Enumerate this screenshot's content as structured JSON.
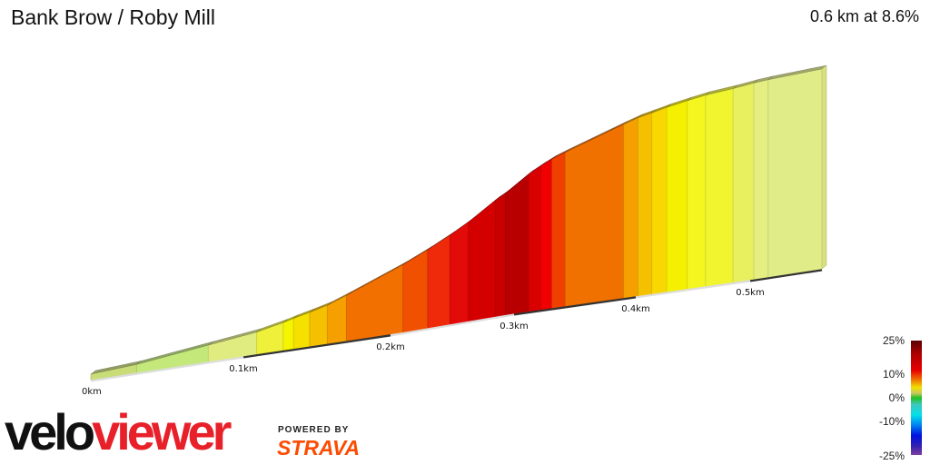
{
  "header": {
    "title": "Bank Brow / Roby Mill",
    "stat": "0.6 km at 8.6%"
  },
  "chart_data": {
    "type": "area",
    "title": "Bank Brow / Roby Mill",
    "xlabel": "",
    "ylabel": "",
    "x_unit": "km",
    "x_ticks": [
      "0km",
      "0.1km",
      "0.2km",
      "0.3km",
      "0.4km",
      "0.5km"
    ],
    "profile_points": [
      [
        0,
        0
      ],
      [
        0.03,
        0.7
      ],
      [
        0.077,
        2.9
      ],
      [
        0.109,
        4.4
      ],
      [
        0.127,
        5.9
      ],
      [
        0.134,
        6.6
      ],
      [
        0.145,
        7.6
      ],
      [
        0.157,
        8.8
      ],
      [
        0.17,
        10.7
      ],
      [
        0.21,
        16.6
      ],
      [
        0.23,
        19.5
      ],
      [
        0.248,
        22.4
      ],
      [
        0.263,
        25.1
      ],
      [
        0.285,
        29.8
      ],
      [
        0.293,
        31.2
      ],
      [
        0.312,
        35.4
      ],
      [
        0.322,
        37.1
      ],
      [
        0.331,
        38.5
      ],
      [
        0.342,
        39.8
      ],
      [
        0.39,
        45.1
      ],
      [
        0.402,
        46.3
      ],
      [
        0.414,
        47.1
      ],
      [
        0.427,
        48
      ],
      [
        0.445,
        49
      ],
      [
        0.461,
        49.8
      ],
      [
        0.485,
        50.5
      ],
      [
        0.505,
        51.2
      ],
      [
        0.525,
        51.5
      ],
      [
        0.6,
        52.2
      ]
    ],
    "segment_colors": [
      "#c8dc78",
      "#c4e87a",
      "#e0ec80",
      "#eef03a",
      "#f5f500",
      "#f5e000",
      "#f5c000",
      "#f5a000",
      "#f27000",
      "#f05000",
      "#ee2a0a",
      "#e30a0a",
      "#d40000",
      "#c80000",
      "#b80000",
      "#d80000",
      "#f00000",
      "#f04000",
      "#f07000",
      "#f5a000",
      "#f5c000",
      "#f8d800",
      "#f5f000",
      "#f5f520",
      "#f0f530",
      "#e8f060",
      "#e5ee80",
      "#e0ec88"
    ],
    "legend": {
      "labels": [
        "25%",
        "10%",
        "0%",
        "-10%",
        "-25%"
      ]
    }
  },
  "branding": {
    "velo": "velo",
    "viewer": "viewer",
    "powered_by": "POWERED BY",
    "strava": "STRAVA"
  }
}
